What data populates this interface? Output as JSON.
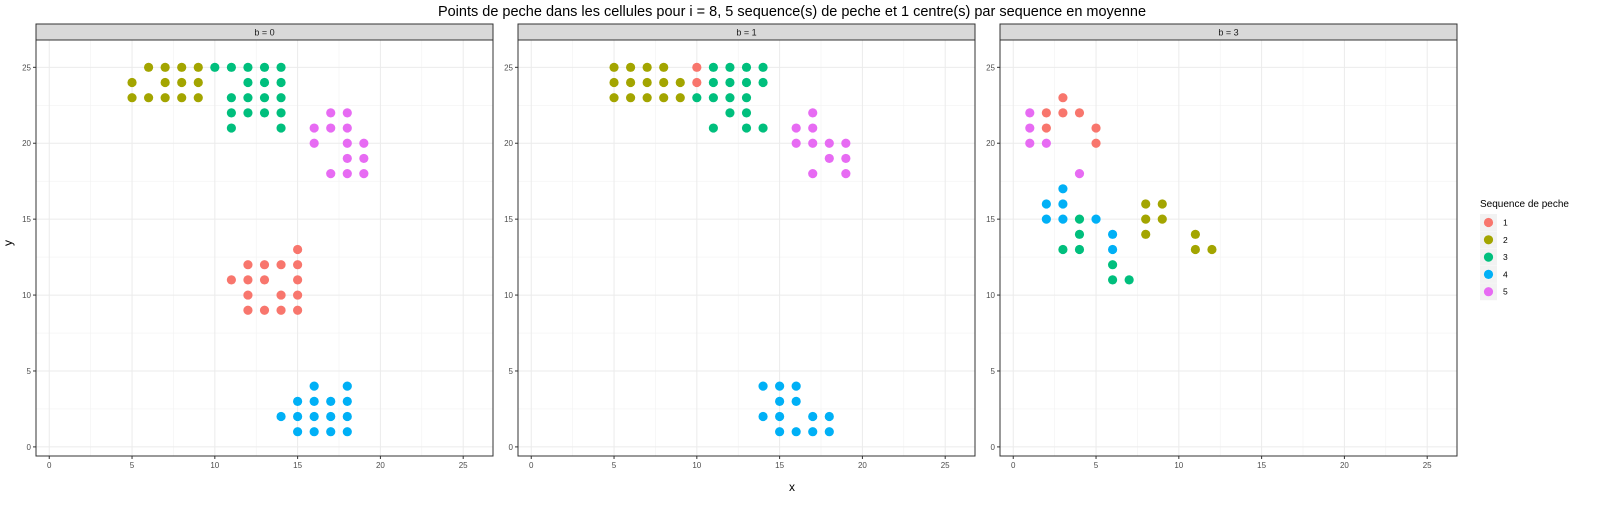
{
  "chart_data": {
    "type": "scatter",
    "title": "Points de peche dans les cellules pour i = 8, 5 sequence(s) de peche et 1 centre(s) par sequence en moyenne",
    "xlabel": "x",
    "ylabel": "y",
    "xlim": [
      -0.8,
      26.8
    ],
    "ylim": [
      -0.6,
      26.8
    ],
    "x_ticks": [
      0,
      5,
      10,
      15,
      20,
      25
    ],
    "y_ticks": [
      0,
      5,
      10,
      15,
      20,
      25
    ],
    "grid": true,
    "legend": {
      "title": "Sequence de peche",
      "placement": "right",
      "entries": [
        {
          "label": "1",
          "color": "#F8766D"
        },
        {
          "label": "2",
          "color": "#A3A500"
        },
        {
          "label": "3",
          "color": "#00BF7D"
        },
        {
          "label": "4",
          "color": "#00B0F6"
        },
        {
          "label": "5",
          "color": "#E76BF3"
        }
      ]
    },
    "panels": [
      {
        "label": "b = 0",
        "series": [
          {
            "name": "1",
            "points": [
              [
                11,
                11
              ],
              [
                12,
                12
              ],
              [
                13,
                12
              ],
              [
                14,
                12
              ],
              [
                15,
                13
              ],
              [
                15,
                12
              ],
              [
                12,
                11
              ],
              [
                13,
                11
              ],
              [
                15,
                11
              ],
              [
                12,
                10
              ],
              [
                14,
                10
              ],
              [
                15,
                10
              ],
              [
                12,
                9
              ],
              [
                13,
                9
              ],
              [
                14,
                9
              ],
              [
                15,
                9
              ]
            ]
          },
          {
            "name": "2",
            "points": [
              [
                5,
                24
              ],
              [
                5,
                23
              ],
              [
                6,
                25
              ],
              [
                6,
                23
              ],
              [
                7,
                25
              ],
              [
                7,
                24
              ],
              [
                7,
                23
              ],
              [
                8,
                25
              ],
              [
                8,
                24
              ],
              [
                8,
                23
              ],
              [
                9,
                25
              ],
              [
                9,
                24
              ],
              [
                9,
                23
              ]
            ]
          },
          {
            "name": "3",
            "points": [
              [
                10,
                25
              ],
              [
                11,
                25
              ],
              [
                12,
                25
              ],
              [
                13,
                25
              ],
              [
                14,
                25
              ],
              [
                12,
                24
              ],
              [
                13,
                24
              ],
              [
                14,
                24
              ],
              [
                11,
                23
              ],
              [
                12,
                23
              ],
              [
                13,
                23
              ],
              [
                14,
                23
              ],
              [
                11,
                22
              ],
              [
                12,
                22
              ],
              [
                13,
                22
              ],
              [
                14,
                22
              ],
              [
                11,
                21
              ],
              [
                14,
                21
              ]
            ]
          },
          {
            "name": "4",
            "points": [
              [
                16,
                4
              ],
              [
                18,
                4
              ],
              [
                15,
                3
              ],
              [
                16,
                3
              ],
              [
                17,
                3
              ],
              [
                18,
                3
              ],
              [
                14,
                2
              ],
              [
                15,
                2
              ],
              [
                16,
                2
              ],
              [
                17,
                2
              ],
              [
                18,
                2
              ],
              [
                15,
                1
              ],
              [
                16,
                1
              ],
              [
                17,
                1
              ],
              [
                18,
                1
              ]
            ]
          },
          {
            "name": "5",
            "points": [
              [
                17,
                22
              ],
              [
                18,
                22
              ],
              [
                16,
                21
              ],
              [
                17,
                21
              ],
              [
                18,
                21
              ],
              [
                16,
                20
              ],
              [
                18,
                20
              ],
              [
                19,
                20
              ],
              [
                18,
                19
              ],
              [
                19,
                19
              ],
              [
                17,
                18
              ],
              [
                18,
                18
              ],
              [
                19,
                18
              ]
            ]
          }
        ]
      },
      {
        "label": "b = 1",
        "series": [
          {
            "name": "1",
            "points": [
              [
                10,
                25
              ],
              [
                10,
                24
              ]
            ]
          },
          {
            "name": "2",
            "points": [
              [
                5,
                25
              ],
              [
                6,
                25
              ],
              [
                7,
                25
              ],
              [
                8,
                25
              ],
              [
                5,
                24
              ],
              [
                6,
                24
              ],
              [
                7,
                24
              ],
              [
                8,
                24
              ],
              [
                9,
                24
              ],
              [
                5,
                23
              ],
              [
                6,
                23
              ],
              [
                7,
                23
              ],
              [
                8,
                23
              ],
              [
                9,
                23
              ]
            ]
          },
          {
            "name": "3",
            "points": [
              [
                11,
                25
              ],
              [
                12,
                25
              ],
              [
                13,
                25
              ],
              [
                14,
                25
              ],
              [
                11,
                24
              ],
              [
                12,
                24
              ],
              [
                13,
                24
              ],
              [
                14,
                24
              ],
              [
                10,
                23
              ],
              [
                11,
                23
              ],
              [
                12,
                23
              ],
              [
                13,
                23
              ],
              [
                12,
                22
              ],
              [
                13,
                22
              ],
              [
                11,
                21
              ],
              [
                13,
                21
              ],
              [
                14,
                21
              ]
            ]
          },
          {
            "name": "4",
            "points": [
              [
                14,
                4
              ],
              [
                15,
                4
              ],
              [
                16,
                4
              ],
              [
                15,
                3
              ],
              [
                16,
                3
              ],
              [
                14,
                2
              ],
              [
                15,
                2
              ],
              [
                17,
                2
              ],
              [
                18,
                2
              ],
              [
                15,
                1
              ],
              [
                16,
                1
              ],
              [
                17,
                1
              ],
              [
                18,
                1
              ]
            ]
          },
          {
            "name": "5",
            "points": [
              [
                17,
                22
              ],
              [
                16,
                21
              ],
              [
                17,
                21
              ],
              [
                16,
                20
              ],
              [
                17,
                20
              ],
              [
                18,
                20
              ],
              [
                19,
                20
              ],
              [
                18,
                19
              ],
              [
                19,
                19
              ],
              [
                17,
                18
              ],
              [
                19,
                18
              ]
            ]
          }
        ]
      },
      {
        "label": "b = 3",
        "series": [
          {
            "name": "1",
            "points": [
              [
                3,
                23
              ],
              [
                2,
                22
              ],
              [
                3,
                22
              ],
              [
                4,
                22
              ],
              [
                2,
                21
              ],
              [
                5,
                21
              ],
              [
                5,
                20
              ]
            ]
          },
          {
            "name": "2",
            "points": [
              [
                8,
                16
              ],
              [
                9,
                16
              ],
              [
                8,
                15
              ],
              [
                9,
                15
              ],
              [
                8,
                14
              ],
              [
                11,
                14
              ],
              [
                11,
                13
              ],
              [
                12,
                13
              ]
            ]
          },
          {
            "name": "3",
            "points": [
              [
                4,
                15
              ],
              [
                4,
                14
              ],
              [
                3,
                13
              ],
              [
                4,
                13
              ],
              [
                6,
                12
              ],
              [
                6,
                11
              ],
              [
                7,
                11
              ]
            ]
          },
          {
            "name": "4",
            "points": [
              [
                3,
                17
              ],
              [
                2,
                16
              ],
              [
                3,
                16
              ],
              [
                2,
                15
              ],
              [
                3,
                15
              ],
              [
                5,
                15
              ],
              [
                6,
                14
              ],
              [
                6,
                13
              ]
            ]
          },
          {
            "name": "5",
            "points": [
              [
                1,
                22
              ],
              [
                1,
                21
              ],
              [
                1,
                20
              ],
              [
                2,
                20
              ],
              [
                4,
                18
              ]
            ]
          }
        ]
      }
    ]
  }
}
